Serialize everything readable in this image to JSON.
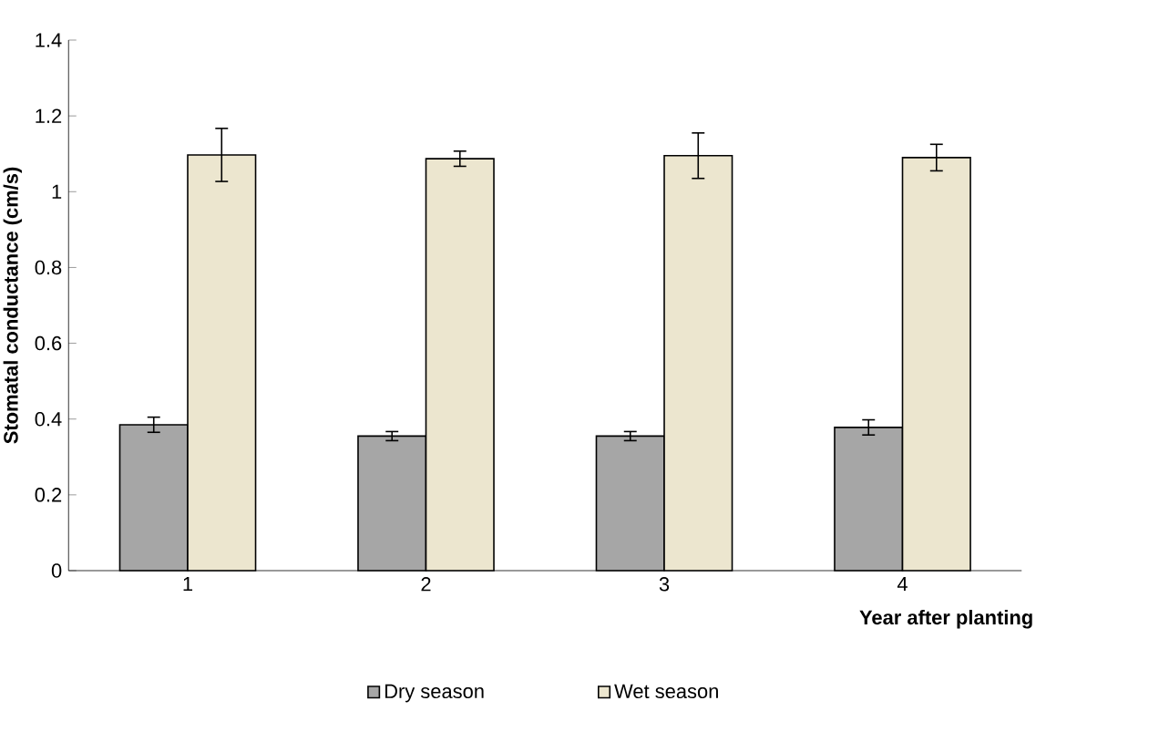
{
  "chart_data": {
    "type": "bar",
    "xlabel": "Year after planting",
    "ylabel": "Stomatal conductance (cm/s)",
    "categories": [
      "1",
      "2",
      "3",
      "4"
    ],
    "ylim": [
      0,
      1.4
    ],
    "yticks": [
      0,
      0.2,
      0.4,
      0.6,
      0.8,
      1,
      1.2,
      1.4
    ],
    "legend": "bottom",
    "series": [
      {
        "name": "Dry season",
        "color": "#a6a6a6",
        "values": [
          0.385,
          0.355,
          0.355,
          0.378
        ],
        "errors": [
          0.02,
          0.012,
          0.012,
          0.02
        ]
      },
      {
        "name": "Wet season",
        "color": "#ece6cf",
        "values": [
          1.097,
          1.087,
          1.095,
          1.09
        ],
        "errors": [
          0.07,
          0.02,
          0.06,
          0.035
        ]
      }
    ]
  }
}
